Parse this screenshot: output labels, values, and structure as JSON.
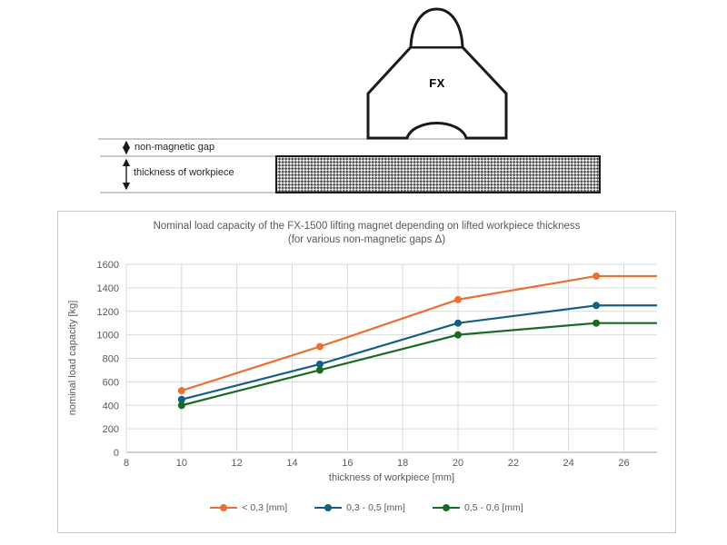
{
  "diagram": {
    "magnet_label": "FX",
    "gap_label": "non-magnetic gap",
    "thickness_label": "thickness of workpiece"
  },
  "chart_data": {
    "type": "line",
    "title": "Nominal load capacity of the FX-1500 lifting magnet depending on lifted workpiece thickness",
    "subtitle": "(for various non-magnetic gaps Δ)",
    "xlabel": "thickness of workpiece [mm]",
    "ylabel": "nominal load capacity [kg]",
    "xlim": [
      8,
      27.2
    ],
    "ylim": [
      0,
      1600
    ],
    "x_ticks": [
      8,
      10,
      12,
      14,
      16,
      18,
      20,
      22,
      24,
      26
    ],
    "y_ticks": [
      0,
      200,
      400,
      600,
      800,
      1000,
      1200,
      1400,
      1600
    ],
    "grid": true,
    "legend_position": "bottom",
    "colors": {
      "gridline": "#d9d9d9",
      "axis_line": "#a6a6a6",
      "tick_text": "#595959"
    },
    "series": [
      {
        "name": "< 0,3 [mm]",
        "color": "#E97132",
        "x": [
          10,
          15,
          20,
          25,
          27.2
        ],
        "y": [
          525,
          900,
          1300,
          1500,
          1500
        ],
        "markers_at": [
          10,
          15,
          20,
          25
        ]
      },
      {
        "name": "0,3 - 0,5 [mm]",
        "color": "#156082",
        "x": [
          10,
          15,
          20,
          25,
          27.2
        ],
        "y": [
          450,
          750,
          1100,
          1250,
          1250
        ],
        "markers_at": [
          10,
          15,
          20,
          25
        ]
      },
      {
        "name": "0,5 - 0,6 [mm]",
        "color": "#196B24",
        "x": [
          10,
          15,
          20,
          25,
          27.2
        ],
        "y": [
          400,
          700,
          1000,
          1100,
          1100
        ],
        "markers_at": [
          10,
          15,
          20,
          25
        ]
      }
    ]
  }
}
